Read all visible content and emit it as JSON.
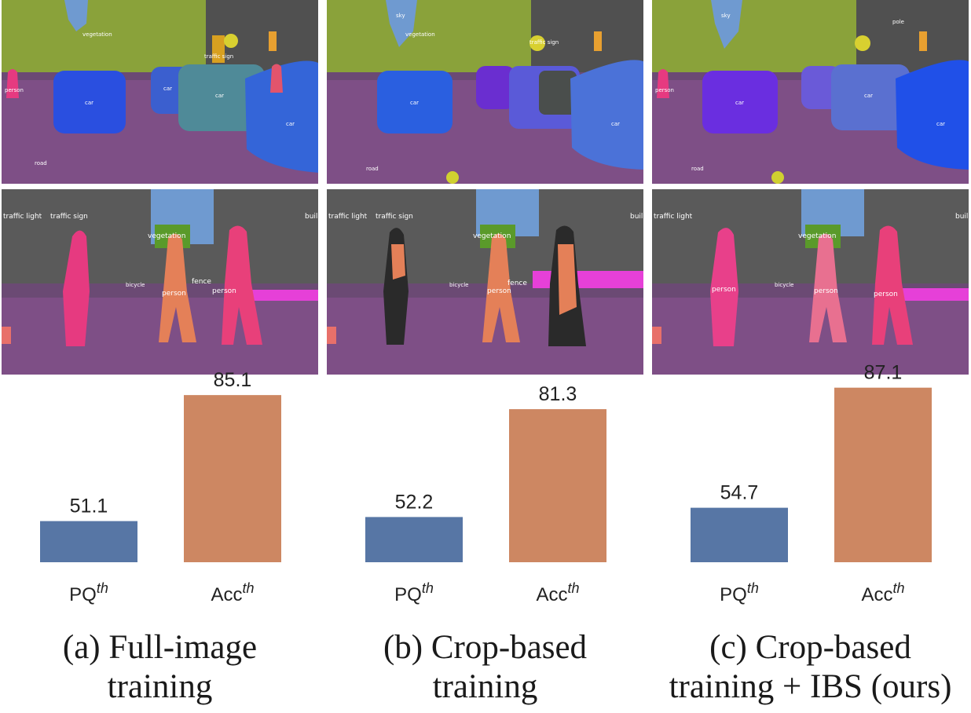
{
  "colors": {
    "pq": "#5776a5",
    "acc": "#cd8762",
    "road": "#7e4f86",
    "vegetation": "#8aa23a",
    "sky": "#6f9ad0",
    "building": "#505050",
    "car": "#2a4fe0",
    "person": "#e63a80",
    "sidewalk": "#e640d8"
  },
  "panels": [
    {
      "id": "a",
      "caption_lines": [
        "(a) Full-image",
        "training"
      ],
      "chart_data": {
        "type": "bar",
        "categories": [
          "PQ",
          "Acc"
        ],
        "superscript": "th",
        "values": [
          51.1,
          85.1
        ],
        "value_labels": [
          "51.1",
          "85.1"
        ],
        "ylim": [
          40,
          90
        ]
      },
      "top_labels": {
        "vegetation": "vegetation",
        "traffic_sign": "traffic sign",
        "person": "person",
        "car1": "car",
        "car2": "car",
        "car3": "car",
        "car4": "car",
        "road": "road"
      },
      "bottom_labels": {
        "traffic_light": "traffic light",
        "traffic_sign": "traffic sign",
        "vegetation": "vegetation",
        "fence": "fence",
        "person1": "person",
        "person2": "person",
        "bicycle": "bicycle",
        "building": "buil"
      }
    },
    {
      "id": "b",
      "caption_lines": [
        "(b) Crop-based",
        "training"
      ],
      "chart_data": {
        "type": "bar",
        "categories": [
          "PQ",
          "Acc"
        ],
        "superscript": "th",
        "values": [
          52.2,
          81.3
        ],
        "value_labels": [
          "52.2",
          "81.3"
        ],
        "ylim": [
          40,
          90
        ]
      },
      "top_labels": {
        "sky": "sky",
        "vegetation": "vegetation",
        "traffic_sign": "traffic sign",
        "car1": "car",
        "car2": "car",
        "road": "road"
      },
      "bottom_labels": {
        "traffic_light": "traffic light",
        "traffic_sign": "traffic sign",
        "vegetation": "vegetation",
        "fence": "fence",
        "person1": "person",
        "bicycle": "bicycle",
        "building": "buil"
      }
    },
    {
      "id": "c",
      "caption_lines": [
        "(c) Crop-based",
        "training + IBS (ours)"
      ],
      "chart_data": {
        "type": "bar",
        "categories": [
          "PQ",
          "Acc"
        ],
        "superscript": "th",
        "values": [
          54.7,
          87.1
        ],
        "value_labels": [
          "54.7",
          "87.1"
        ],
        "ylim": [
          40,
          90
        ]
      },
      "top_labels": {
        "sky": "sky",
        "pole": "pole",
        "person": "person",
        "car1": "car",
        "car2": "car",
        "car3": "car",
        "road": "road"
      },
      "bottom_labels": {
        "traffic_light": "traffic light",
        "vegetation": "vegetation",
        "person1": "person",
        "person2": "person",
        "person3": "person",
        "bicycle": "bicycle",
        "building": "buil"
      }
    }
  ]
}
